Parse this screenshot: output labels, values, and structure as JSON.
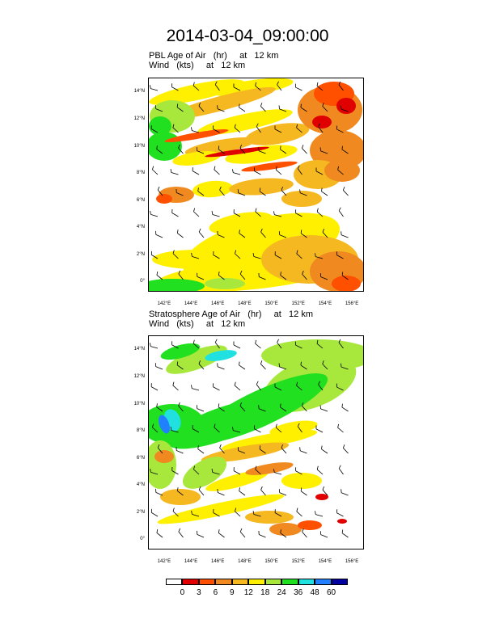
{
  "title": "2014-03-04_09:00:00",
  "panels": [
    {
      "id": "pbl",
      "line1": "PBL Age of Air   (hr)     at   12 km",
      "line2": "Wind   (kts)     at   12 km"
    },
    {
      "id": "strat",
      "line1": "Stratosphere Age of Air   (hr)     at   12 km",
      "line2": "Wind   (kts)     at   12 km"
    }
  ],
  "axes": {
    "lat_labels": [
      "14°N",
      "12°N",
      "10°N",
      "8°N",
      "6°N",
      "4°N",
      "2°N",
      "0°"
    ],
    "lat_values": [
      14,
      12,
      10,
      8,
      6,
      4,
      2,
      0
    ],
    "lon_labels": [
      "142°E",
      "144°E",
      "146°E",
      "148°E",
      "150°E",
      "152°E",
      "154°E",
      "156°E"
    ],
    "lon_values": [
      142,
      144,
      146,
      148,
      150,
      152,
      154,
      156
    ],
    "lat_range": [
      -0.7,
      15.1
    ],
    "lon_range": [
      140.8,
      156.9
    ]
  },
  "colorbar": {
    "labels": [
      "0",
      "3",
      "6",
      "9",
      "12",
      "18",
      "24",
      "36",
      "48",
      "60"
    ],
    "colors": [
      "#ffffff",
      "#e00000",
      "#ff5000",
      "#f08a20",
      "#f5b820",
      "#fff000",
      "#a8e83c",
      "#20e020",
      "#20e0e0",
      "#2080ff",
      "#0000a0"
    ]
  }
}
